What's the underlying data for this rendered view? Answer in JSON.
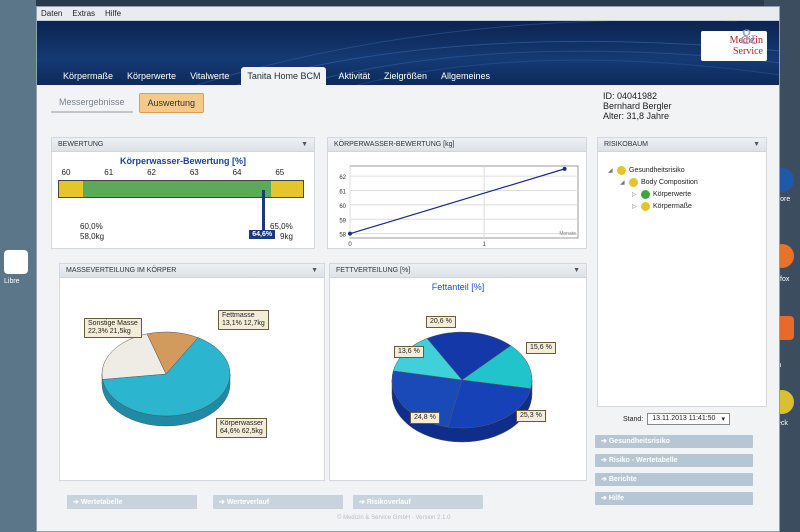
{
  "menu": [
    "Daten",
    "Extras",
    "Hilfe"
  ],
  "logo": {
    "line1": "Medizin",
    "line2": "Service",
    "amp": "&"
  },
  "tabs": [
    "Körpermaße",
    "Körperwerte",
    "Vitalwerte",
    "Tanita Home BCM",
    "Aktivität",
    "Zielgrößen",
    "Allgemeines"
  ],
  "active_tab": 3,
  "subtabs": [
    "Messergebnisse",
    "Auswertung"
  ],
  "patient": {
    "id": "ID: 04041982",
    "name": "Bernhard Bergler",
    "age": "Alter: 31,8 Jahre"
  },
  "bewertung": {
    "header": "BEWERTUNG",
    "title": "Körperwasser-Bewertung [%]",
    "ticks": [
      "60",
      "61",
      "62",
      "63",
      "64",
      "65"
    ],
    "low_pct": "60,0%",
    "low_kg": "58,0kg",
    "high_pct": "65,0%",
    "high_kg": "9kg",
    "marker": "64,6%"
  },
  "kw_chart": {
    "header": "KÖRPERWASSER-BEWERTUNG [kg]",
    "yticks": [
      "62",
      "61",
      "60",
      "59",
      "58"
    ],
    "xticks": [
      "0",
      "1"
    ],
    "xunit": "Monate"
  },
  "masse": {
    "header": "MASSEVERTEILUNG IM KÖRPER",
    "sonstige_1": "Sonstige Masse",
    "sonstige_2": "22,3% 21,5kg",
    "fett_1": "Fettmasse",
    "fett_2": "13,1% 12,7kg",
    "wasser_1": "Körperwasser",
    "wasser_2": "64,6% 62,5kg"
  },
  "chart_data": [
    {
      "type": "bar",
      "title": "Körperwasser-Bewertung [%]",
      "categories": [
        "Körperwasser"
      ],
      "values": [
        64.6
      ],
      "ylim": [
        59.8,
        65.6
      ],
      "ranges": [
        60.0,
        65.0
      ]
    },
    {
      "type": "line",
      "title": "KÖRPERWASSER-BEWERTUNG [kg]",
      "x": [
        0,
        1.6
      ],
      "values": [
        58.0,
        62.5
      ],
      "xlim": [
        0,
        1.7
      ],
      "ylim": [
        57.7,
        62.7
      ],
      "xlabel": "Monate"
    },
    {
      "type": "pie",
      "title": "MASSEVERTEILUNG IM KÖRPER",
      "categories": [
        "Körperwasser",
        "Sonstige Masse",
        "Fettmasse"
      ],
      "values": [
        64.6,
        22.3,
        13.1
      ],
      "colors": [
        "#2bb5cf",
        "#efece6",
        "#d39a5e"
      ]
    },
    {
      "type": "pie",
      "title": "Fettanteil [%]",
      "categories": [
        "20,6 %",
        "15,6 %",
        "25,3 %",
        "24,8 %",
        "13,6 %"
      ],
      "values": [
        20.6,
        15.6,
        25.3,
        24.8,
        13.6
      ],
      "colors": [
        "#1538a8",
        "#22c4cc",
        "#1642b8",
        "#1a4ab8",
        "#3fd0da"
      ]
    }
  ],
  "fett": {
    "header": "FETTVERTEILUNG [%]",
    "title": "Fettanteil [%]"
  },
  "risiko": {
    "header": "RISIKOBAUM",
    "items": [
      "Gesundheitsrisiko",
      "Body Composition",
      "Körperwerte",
      "Körpermaße"
    ],
    "colors": [
      "#e8c22a",
      "#e8c22a",
      "#3aa83a",
      "#e8c22a"
    ]
  },
  "stand": {
    "label": "Stand:",
    "value": "13.11.2013 11:41:50"
  },
  "nav": [
    "Gesundheitsrisiko",
    "Risiko - Wertetabelle",
    "Berichte",
    "Hilfe"
  ],
  "bottom": [
    "Wertetabelle",
    "Werteverlauf",
    "Risikoverlauf"
  ],
  "footer": "© Medizin & Service GmbH · Version 2.1.0",
  "desktop": {
    "left": "Libre",
    "r1": "orpore",
    "r2": "Firefox",
    "r3": "tion",
    "r4": "Check"
  }
}
